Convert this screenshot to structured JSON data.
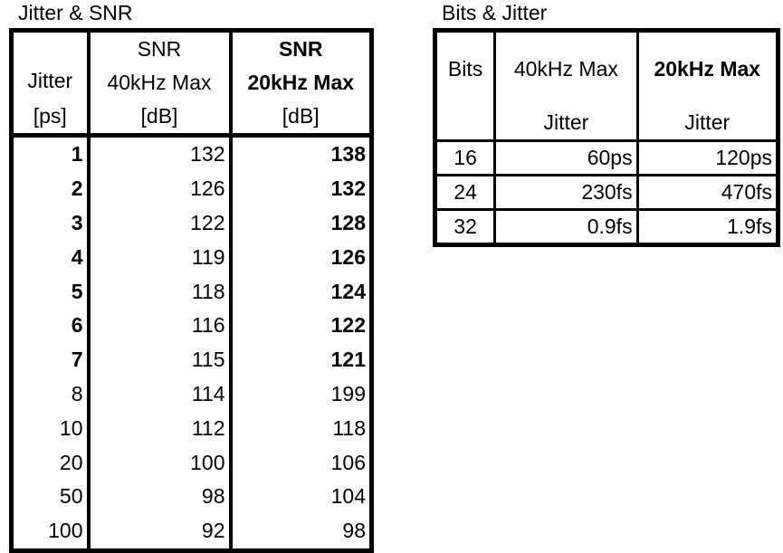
{
  "jitter_snr": {
    "title": "Jitter & SNR",
    "headers": {
      "col1": [
        "Jitter",
        "[ps]"
      ],
      "col2": [
        "SNR",
        "40kHz Max",
        "[dB]"
      ],
      "col3": [
        "SNR",
        "20kHz Max",
        "[dB]"
      ]
    },
    "rows": [
      {
        "jitter": "1",
        "snr40": "132",
        "snr20": "138",
        "bold": true
      },
      {
        "jitter": "2",
        "snr40": "126",
        "snr20": "132",
        "bold": true
      },
      {
        "jitter": "3",
        "snr40": "122",
        "snr20": "128",
        "bold": true
      },
      {
        "jitter": "4",
        "snr40": "119",
        "snr20": "126",
        "bold": true
      },
      {
        "jitter": "5",
        "snr40": "118",
        "snr20": "124",
        "bold": true
      },
      {
        "jitter": "6",
        "snr40": "116",
        "snr20": "122",
        "bold": true
      },
      {
        "jitter": "7",
        "snr40": "115",
        "snr20": "121",
        "bold": true
      },
      {
        "jitter": "8",
        "snr40": "114",
        "snr20": "199",
        "bold": false
      },
      {
        "jitter": "10",
        "snr40": "112",
        "snr20": "118",
        "bold": false
      },
      {
        "jitter": "20",
        "snr40": "100",
        "snr20": "106",
        "bold": false
      },
      {
        "jitter": "50",
        "snr40": "98",
        "snr20": "104",
        "bold": false
      },
      {
        "jitter": "100",
        "snr40": "92",
        "snr20": "98",
        "bold": false
      }
    ]
  },
  "bits_jitter": {
    "title": "Bits & Jitter",
    "headers": {
      "col1": "Bits",
      "col2": [
        "40kHz Max",
        "Jitter"
      ],
      "col3": [
        "20kHz Max",
        "Jitter"
      ]
    },
    "rows": [
      {
        "bits": "16",
        "j40": "60ps",
        "j20": "120ps"
      },
      {
        "bits": "24",
        "j40": "230fs",
        "j20": "470fs"
      },
      {
        "bits": "32",
        "j40": "0.9fs",
        "j20": "1.9fs"
      }
    ]
  }
}
